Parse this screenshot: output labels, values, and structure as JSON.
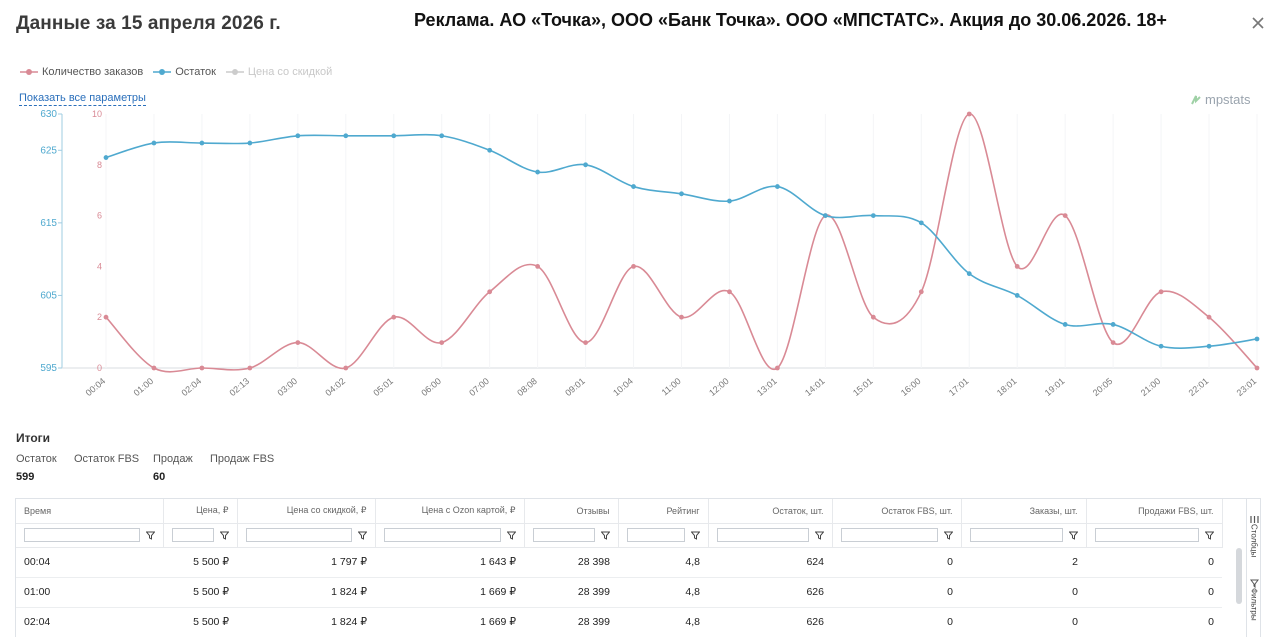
{
  "header": {
    "title": "Данные за 15 апреля 2026 г.",
    "ad_text": "Реклама. АО «Точка», ООО «Банк Точка». ООО «МПСТАТС». Акция до 30.06.2026. 18+"
  },
  "legend": [
    {
      "label": "Количество заказов",
      "color": "#d98a95",
      "active": true
    },
    {
      "label": "Остаток",
      "color": "#4fa9cf",
      "active": true
    },
    {
      "label": "Цена со скидкой",
      "color": "#cccccc",
      "active": false
    }
  ],
  "show_all_label": "Показать все параметры",
  "brand": "mpstats",
  "chart_data": {
    "type": "line",
    "x": [
      "00:04",
      "01:00",
      "02:04",
      "02:13",
      "03:00",
      "04:02",
      "05:01",
      "06:00",
      "07:00",
      "08:08",
      "09:01",
      "10:04",
      "11:00",
      "12:00",
      "13:01",
      "14:01",
      "15:01",
      "16:00",
      "17:01",
      "18:01",
      "19:01",
      "20:05",
      "21:00",
      "22:01",
      "23:01"
    ],
    "series": [
      {
        "name": "Количество заказов",
        "axis": "right",
        "color": "#d98a95",
        "values": [
          2,
          0,
          0,
          0,
          1,
          0,
          2,
          1,
          3,
          4,
          1,
          4,
          2,
          3,
          0,
          6,
          2,
          3,
          10,
          4,
          6,
          1,
          3,
          2,
          0
        ]
      },
      {
        "name": "Остаток",
        "axis": "left",
        "color": "#4fa9cf",
        "values": [
          624,
          626,
          626,
          626,
          627,
          627,
          627,
          627,
          625,
          622,
          623,
          620,
          619,
          618,
          620,
          616,
          616,
          615,
          608,
          605,
          601,
          601,
          598,
          598,
          599
        ]
      }
    ],
    "y_left": {
      "min": 595,
      "max": 630,
      "ticks": [
        595,
        605,
        615,
        625,
        630
      ]
    },
    "y_right": {
      "min": 0,
      "max": 10,
      "ticks": [
        0,
        2,
        4,
        6,
        8,
        10
      ]
    }
  },
  "totals": {
    "title": "Итоги",
    "items": [
      {
        "label": "Остаток",
        "value": "599"
      },
      {
        "label": "Остаток FBS",
        "value": ""
      },
      {
        "label": "Продаж",
        "value": "60"
      },
      {
        "label": "Продаж FBS",
        "value": ""
      }
    ]
  },
  "table": {
    "columns": [
      "Время",
      "Цена, ₽",
      "Цена со скидкой, ₽",
      "Цена с Ozon картой, ₽",
      "Отзывы",
      "Рейтинг",
      "Остаток, шт.",
      "Остаток FBS, шт.",
      "Заказы, шт.",
      "Продажи FBS, шт."
    ],
    "rows": [
      [
        "00:04",
        "5 500 ₽",
        "1 797 ₽",
        "1 643 ₽",
        "28 398",
        "4,8",
        "624",
        "0",
        "2",
        "0"
      ],
      [
        "01:00",
        "5 500 ₽",
        "1 824 ₽",
        "1 669 ₽",
        "28 399",
        "4,8",
        "626",
        "0",
        "0",
        "0"
      ],
      [
        "02:04",
        "5 500 ₽",
        "1 824 ₽",
        "1 669 ₽",
        "28 399",
        "4,8",
        "626",
        "0",
        "0",
        "0"
      ]
    ]
  },
  "side_panel": {
    "columns_label": "Столбцы",
    "filters_label": "Фильтры"
  },
  "icons": {
    "close": "close-icon",
    "filter": "filter-icon",
    "columns": "columns-icon",
    "filters": "filters-icon"
  }
}
